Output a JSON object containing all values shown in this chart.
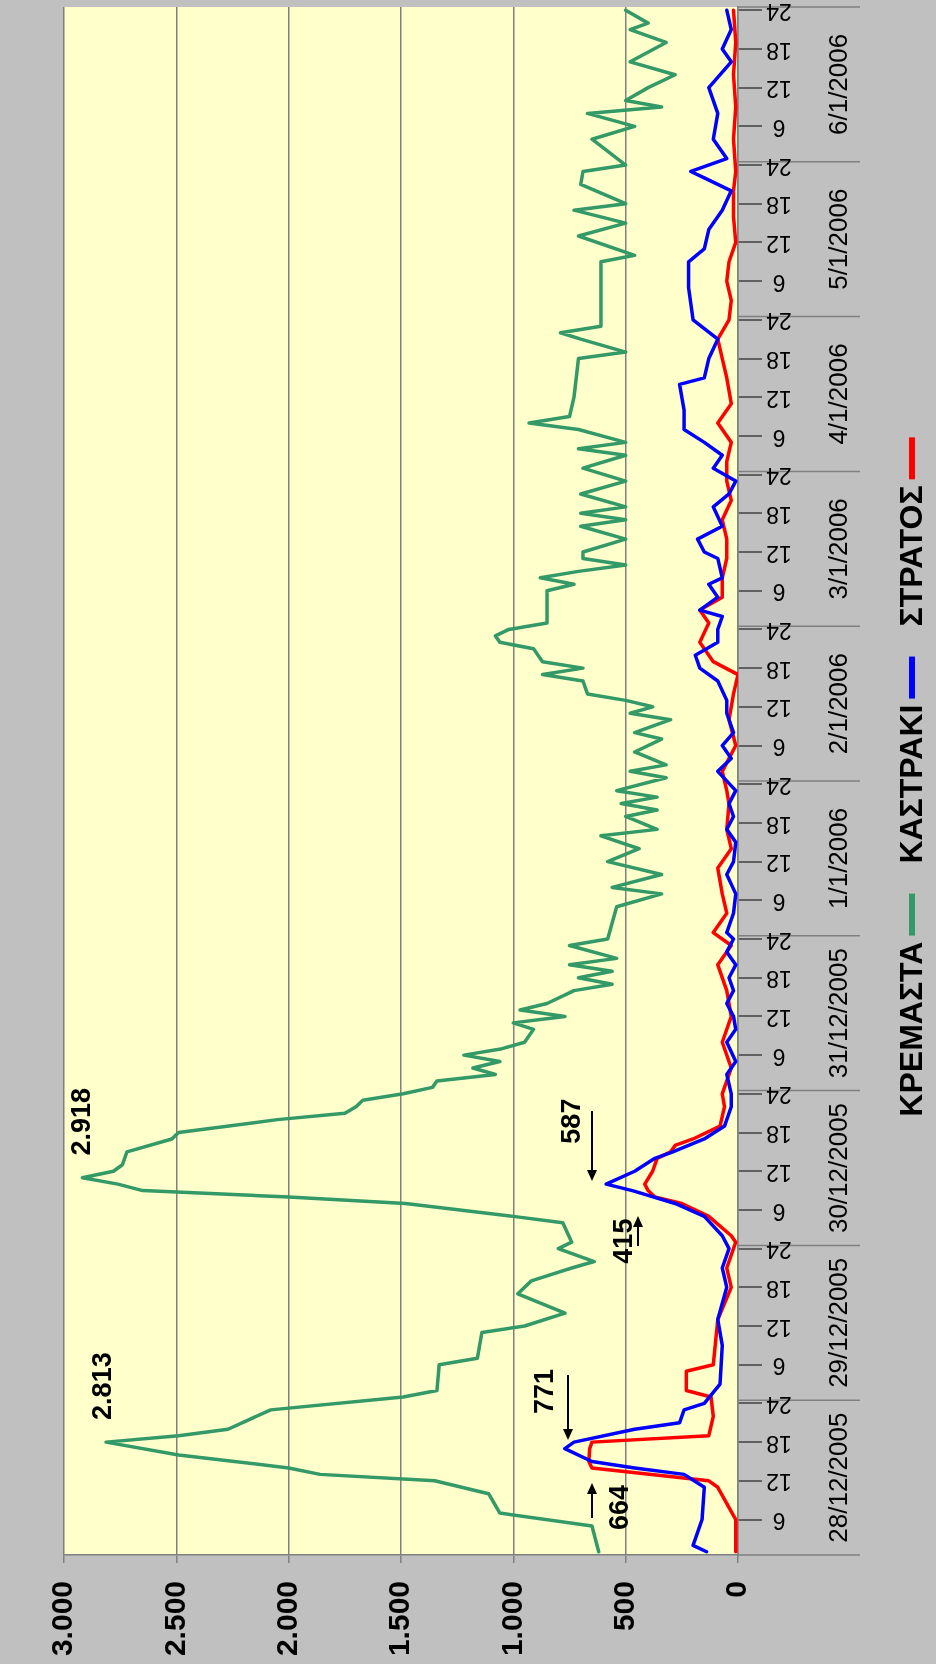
{
  "chart_data": {
    "type": "line",
    "orientation": "horizontal",
    "xlim": [
      3000,
      0
    ],
    "xticks": [
      {
        "value": 3000,
        "label": "3.000"
      },
      {
        "value": 2500,
        "label": "2.500"
      },
      {
        "value": 2000,
        "label": "2.000"
      },
      {
        "value": 1500,
        "label": "1.500"
      },
      {
        "value": 1000,
        "label": "1.000"
      },
      500,
      0
    ],
    "ylim": [
      "2005-12-28T00:30",
      "2006-01-07T00:30"
    ],
    "yticks": [
      {
        "value": "2005-12-28T06:00",
        "label": "6"
      },
      {
        "value": "2005-12-28T12:00",
        "label": "12"
      },
      {
        "value": "2005-12-28T18:00",
        "label": "18"
      },
      {
        "value": "2005-12-29T00:00",
        "label": "24"
      },
      {
        "value": "2005-12-29T06:00",
        "label": "6"
      },
      {
        "value": "2005-12-29T12:00",
        "label": "12"
      },
      {
        "value": "2005-12-29T18:00",
        "label": "18"
      },
      {
        "value": "2005-12-30T00:00",
        "label": "24"
      },
      {
        "value": "2005-12-30T06:00",
        "label": "6"
      },
      {
        "value": "2005-12-30T12:00",
        "label": "12"
      },
      {
        "value": "2005-12-30T18:00",
        "label": "18"
      },
      {
        "value": "2005-12-31T00:00",
        "label": "24"
      },
      {
        "value": "2005-12-31T06:00",
        "label": "6"
      },
      {
        "value": "2005-12-31T12:00",
        "label": "12"
      },
      {
        "value": "2005-12-31T18:00",
        "label": "18"
      },
      {
        "value": "2006-01-01T00:00",
        "label": "24"
      },
      {
        "value": "2006-01-01T06:00",
        "label": "6"
      },
      {
        "value": "2006-01-01T12:00",
        "label": "12"
      },
      {
        "value": "2006-01-01T18:00",
        "label": "18"
      },
      {
        "value": "2006-01-02T00:00",
        "label": "24"
      },
      {
        "value": "2006-01-02T06:00",
        "label": "6"
      },
      {
        "value": "2006-01-02T12:00",
        "label": "12"
      },
      {
        "value": "2006-01-02T18:00",
        "label": "18"
      },
      {
        "value": "2006-01-03T00:00",
        "label": "24"
      },
      {
        "value": "2006-01-03T06:00",
        "label": "6"
      },
      {
        "value": "2006-01-03T12:00",
        "label": "12"
      },
      {
        "value": "2006-01-03T18:00",
        "label": "18"
      },
      {
        "value": "2006-01-04T00:00",
        "label": "24"
      },
      {
        "value": "2006-01-04T06:00",
        "label": "6"
      },
      {
        "value": "2006-01-04T12:00",
        "label": "12"
      },
      {
        "value": "2006-01-04T18:00",
        "label": "18"
      },
      {
        "value": "2006-01-05T00:00",
        "label": "24"
      },
      {
        "value": "2006-01-05T06:00",
        "label": "6"
      },
      {
        "value": "2006-01-05T12:00",
        "label": "12"
      },
      {
        "value": "2006-01-05T18:00",
        "label": "18"
      },
      {
        "value": "2006-01-06T00:00",
        "label": "24"
      },
      {
        "value": "2006-01-06T06:00",
        "label": "6"
      },
      {
        "value": "2006-01-06T12:00",
        "label": "12"
      },
      {
        "value": "2006-01-06T18:00",
        "label": "18"
      },
      {
        "value": "2006-01-07T00:00",
        "label": "24"
      }
    ],
    "y2lim": [
      "2005-12-28T00:30",
      "2006-01-07T00:30"
    ],
    "y2ticks": [
      {
        "value": "2005-12-28T12:30",
        "label": "28/12/2005"
      },
      {
        "value": "2005-12-29T12:30",
        "label": "29/12/2005"
      },
      {
        "value": "2005-12-30T12:30",
        "label": "30/12/2005"
      },
      {
        "value": "2005-12-31T12:30",
        "label": "31/12/2005"
      },
      {
        "value": "2006-01-01T12:30",
        "label": "1/1/2006"
      },
      {
        "value": "2006-01-02T12:30",
        "label": "2/1/2006"
      },
      {
        "value": "2006-01-03T12:30",
        "label": "3/1/2006"
      },
      {
        "value": "2006-01-04T12:30",
        "label": "4/1/2006"
      },
      {
        "value": "2006-01-05T12:30",
        "label": "5/1/2006"
      },
      {
        "value": "2006-01-06T12:30",
        "label": "6/1/2006"
      }
    ],
    "grid": "x",
    "legend": "right",
    "series": [
      {
        "name": "ΚΡΕΜΑΣΤΑ",
        "color": "#339966",
        "x": [
          "2005-12-28T01:00",
          "2005-12-28T05:00",
          "2005-12-28T07:00",
          "2005-12-28T10:00",
          "2005-12-28T12:00",
          "2005-12-28T13:00",
          "2005-12-28T14:00",
          "2005-12-28T16:00",
          "2005-12-28T18:00",
          "2005-12-28T19:00",
          "2005-12-28T20:00",
          "2005-12-28T23:00",
          "2005-12-29T01:00",
          "2005-12-29T02:00",
          "2005-12-29T06:00",
          "2005-12-29T07:00",
          "2005-12-29T11:00",
          "2005-12-29T12:00",
          "2005-12-29T14:00",
          "2005-12-29T17:00",
          "2005-12-29T19:00",
          "2005-12-29T21:00",
          "2005-12-29T22:00",
          "2005-12-30T00:00",
          "2005-12-30T01:00",
          "2005-12-30T04:00",
          "2005-12-30T05:00",
          "2005-12-30T07:00",
          "2005-12-30T08:00",
          "2005-12-30T09:00",
          "2005-12-30T10:00",
          "2005-12-30T11:00",
          "2005-12-30T12:00",
          "2005-12-30T13:00",
          "2005-12-30T15:00",
          "2005-12-30T17:00",
          "2005-12-30T18:00",
          "2005-12-30T20:00",
          "2005-12-30T21:00",
          "2005-12-30T22:00",
          "2005-12-30T23:00",
          "2005-12-31T00:00",
          "2005-12-31T01:00",
          "2005-12-31T02:00",
          "2005-12-31T03:00",
          "2005-12-31T04:00",
          "2005-12-31T05:00",
          "2005-12-31T06:00",
          "2005-12-31T07:00",
          "2005-12-31T08:00",
          "2005-12-31T10:00",
          "2005-12-31T11:00",
          "2005-12-31T12:00",
          "2005-12-31T13:00",
          "2005-12-31T14:00",
          "2005-12-31T16:00",
          "2005-12-31T17:00",
          "2005-12-31T18:00",
          "2005-12-31T19:00",
          "2005-12-31T20:00",
          "2005-12-31T21:00",
          "2005-12-31T23:00",
          "2006-01-01T00:00",
          "2006-01-01T05:00",
          "2006-01-01T07:00",
          "2006-01-01T08:00",
          "2006-01-01T10:00",
          "2006-01-01T12:00",
          "2006-01-01T14:00",
          "2006-01-01T16:00",
          "2006-01-01T17:00",
          "2006-01-01T19:00",
          "2006-01-01T20:00",
          "2006-01-01T21:00",
          "2006-01-01T22:00",
          "2006-01-01T23:00",
          "2006-01-02T01:00",
          "2006-01-02T02:00",
          "2006-01-02T03:00",
          "2006-01-02T05:00",
          "2006-01-02T07:00",
          "2006-01-02T08:00",
          "2006-01-02T10:00",
          "2006-01-02T11:00",
          "2006-01-02T12:00",
          "2006-01-02T13:00",
          "2006-01-02T14:00",
          "2006-01-02T16:00",
          "2006-01-02T17:00",
          "2006-01-02T18:00",
          "2006-01-02T19:00",
          "2006-01-02T21:00",
          "2006-01-02T22:00",
          "2006-01-02T23:00",
          "2006-01-03T00:00",
          "2006-01-03T01:00",
          "2006-01-03T06:00",
          "2006-01-03T07:00",
          "2006-01-03T08:00",
          "2006-01-03T09:00",
          "2006-01-03T10:00",
          "2006-01-03T11:00",
          "2006-01-03T12:00",
          "2006-01-03T14:00",
          "2006-01-03T16:00",
          "2006-01-03T17:00",
          "2006-01-03T18:00",
          "2006-01-03T19:00",
          "2006-01-03T21:00",
          "2006-01-03T23:00",
          "2006-01-04T01:00",
          "2006-01-04T03:00",
          "2006-01-04T04:00",
          "2006-01-04T05:00",
          "2006-01-04T07:00",
          "2006-01-04T08:00",
          "2006-01-04T09:00",
          "2006-01-04T12:00",
          "2006-01-04T18:00",
          "2006-01-04T19:00",
          "2006-01-04T21:00",
          "2006-01-04T22:00",
          "2006-01-04T23:00",
          "2006-01-05T09:00",
          "2006-01-05T10:00",
          "2006-01-05T13:00",
          "2006-01-05T15:00",
          "2006-01-05T17:00",
          "2006-01-05T18:00",
          "2006-01-05T21:00",
          "2006-01-05T23:00",
          "2006-01-06T00:00",
          "2006-01-06T04:00",
          "2006-01-06T06:00",
          "2006-01-06T08:00",
          "2006-01-06T09:00",
          "2006-01-06T10:00",
          "2006-01-06T12:00",
          "2006-01-06T14:00",
          "2006-01-06T16:00",
          "2006-01-06T19:00",
          "2006-01-06T21:00",
          "2006-01-06T22:00",
          "2006-01-07T00:00"
        ],
        "values": [
          620,
          650,
          1060,
          1110,
          1350,
          1860,
          2000,
          2490,
          2813,
          2490,
          2270,
          2080,
          1490,
          1340,
          1330,
          1160,
          1140,
          950,
          770,
          980,
          920,
          740,
          640,
          800,
          740,
          780,
          1000,
          1480,
          2000,
          2650,
          2760,
          2918,
          2780,
          2740,
          2720,
          2520,
          2490,
          2050,
          1750,
          1700,
          1670,
          1490,
          1360,
          1340,
          1080,
          1180,
          1060,
          1220,
          1050,
          950,
          910,
          1000,
          770,
          970,
          850,
          730,
          560,
          710,
          560,
          750,
          540,
          750,
          580,
          540,
          340,
          560,
          340,
          580,
          440,
          610,
          360,
          500,
          360,
          520,
          360,
          540,
          320,
          480,
          320,
          460,
          340,
          460,
          300,
          480,
          380,
          500,
          670,
          690,
          870,
          690,
          870,
          910,
          1060,
          1080,
          1020,
          850,
          850,
          730,
          880,
          710,
          500,
          690,
          690,
          500,
          700,
          500,
          700,
          500,
          700,
          500,
          690,
          500,
          710,
          500,
          710,
          930,
          750,
          730,
          710,
          500,
          700,
          790,
          610,
          610,
          460,
          710,
          500,
          730,
          500,
          700,
          690,
          500,
          650,
          460,
          670,
          340,
          500,
          400,
          280,
          480,
          320,
          480,
          400,
          500
        ]
      },
      {
        "name": "ΚΑΣΤΡΑΚΙ",
        "color": "#0000ff",
        "x": [
          "2005-12-28T01:00",
          "2005-12-28T02:00",
          "2005-12-28T06:00",
          "2005-12-28T11:00",
          "2005-12-28T13:00",
          "2005-12-28T14:00",
          "2005-12-28T15:00",
          "2005-12-28T17:00",
          "2005-12-28T18:00",
          "2005-12-28T20:00",
          "2005-12-28T21:00",
          "2005-12-28T23:00",
          "2005-12-29T00:00",
          "2005-12-29T03:00",
          "2005-12-29T09:00",
          "2005-12-29T13:00",
          "2005-12-29T18:00",
          "2005-12-29T21:00",
          "2005-12-30T00:00",
          "2005-12-30T02:00",
          "2005-12-30T05:00",
          "2005-12-30T07:00",
          "2005-12-30T09:00",
          "2005-12-30T10:00",
          "2005-12-30T12:00",
          "2005-12-30T14:00",
          "2005-12-30T15:00",
          "2005-12-30T17:00",
          "2005-12-30T19:00",
          "2005-12-30T22:00",
          "2005-12-31T00:00",
          "2005-12-31T03:00",
          "2005-12-31T05:00",
          "2005-12-31T08:00",
          "2005-12-31T10:00",
          "2005-12-31T12:00",
          "2005-12-31T14:00",
          "2005-12-31T16:00",
          "2005-12-31T18:00",
          "2005-12-31T20:00",
          "2005-12-31T22:00",
          "2006-01-01T00:00",
          "2006-01-01T01:00",
          "2006-01-01T04:00",
          "2006-01-01T07:00",
          "2006-01-01T10:00",
          "2006-01-01T12:00",
          "2006-01-01T15:00",
          "2006-01-01T17:00",
          "2006-01-01T19:00",
          "2006-01-01T21:00",
          "2006-01-01T23:00",
          "2006-01-02T02:00",
          "2006-01-02T04:00",
          "2006-01-02T06:00",
          "2006-01-02T08:00",
          "2006-01-02T11:00",
          "2006-01-02T13:00",
          "2006-01-02T16:00",
          "2006-01-02T18:00",
          "2006-01-02T20:00",
          "2006-01-02T22:00",
          "2006-01-03T00:00",
          "2006-01-03T02:00",
          "2006-01-03T03:00",
          "2006-01-03T05:00",
          "2006-01-03T07:00",
          "2006-01-03T08:00",
          "2006-01-03T11:00",
          "2006-01-03T12:00",
          "2006-01-03T14:00",
          "2006-01-03T16:00",
          "2006-01-03T19:00",
          "2006-01-03T21:00",
          "2006-01-03T23:00",
          "2006-01-04T01:00",
          "2006-01-04T03:00",
          "2006-01-04T05:00",
          "2006-01-04T07:00",
          "2006-01-04T10:00",
          "2006-01-04T14:00",
          "2006-01-04T15:00",
          "2006-01-04T18:00",
          "2006-01-04T21:00",
          "2006-01-05T00:00",
          "2006-01-05T05:00",
          "2006-01-05T09:00",
          "2006-01-05T11:00",
          "2006-01-05T14:00",
          "2006-01-05T17:00",
          "2006-01-05T20:00",
          "2006-01-05T22:00",
          "2006-01-05T23:00",
          "2006-01-06T01:00",
          "2006-01-06T04:00",
          "2006-01-06T08:00",
          "2006-01-06T12:00",
          "2006-01-06T16:00",
          "2006-01-06T18:00",
          "2006-01-06T21:00",
          "2006-01-07T00:00"
        ],
        "values": [
          140,
          200,
          160,
          150,
          240,
          460,
          650,
          771,
          730,
          460,
          260,
          240,
          150,
          80,
          70,
          90,
          50,
          70,
          40,
          70,
          150,
          280,
          470,
          587,
          460,
          370,
          290,
          150,
          60,
          30,
          30,
          50,
          10,
          50,
          10,
          20,
          50,
          20,
          40,
          10,
          50,
          20,
          50,
          20,
          10,
          50,
          20,
          10,
          50,
          20,
          40,
          10,
          90,
          30,
          70,
          20,
          50,
          50,
          90,
          170,
          190,
          90,
          90,
          70,
          170,
          90,
          130,
          70,
          90,
          150,
          180,
          70,
          110,
          40,
          10,
          110,
          70,
          150,
          240,
          240,
          260,
          150,
          130,
          90,
          200,
          220,
          220,
          150,
          130,
          70,
          30,
          150,
          210,
          50,
          110,
          90,
          130,
          30,
          70,
          30,
          50
        ]
      },
      {
        "name": "ΣΤΡΑΤΟΣ",
        "color": "#ff0000",
        "x": [
          "2005-12-28T01:00",
          "2005-12-28T06:00",
          "2005-12-28T11:00",
          "2005-12-28T12:00",
          "2005-12-28T14:00",
          "2005-12-28T15:00",
          "2005-12-28T17:00",
          "2005-12-28T18:00",
          "2005-12-28T19:00",
          "2005-12-28T22:00",
          "2005-12-29T01:00",
          "2005-12-29T02:00",
          "2005-12-29T05:00",
          "2005-12-29T06:00",
          "2005-12-29T13:00",
          "2005-12-29T18:00",
          "2005-12-29T21:00",
          "2005-12-30T01:00",
          "2005-12-30T02:00",
          "2005-12-30T05:00",
          "2005-12-30T07:00",
          "2005-12-30T08:00",
          "2005-12-30T09:00",
          "2005-12-30T10:00",
          "2005-12-30T12:00",
          "2005-12-30T14:00",
          "2005-12-30T15:00",
          "2005-12-30T16:00",
          "2005-12-30T17:00",
          "2005-12-30T19:00",
          "2005-12-30T22:00",
          "2005-12-31T00:00",
          "2005-12-31T04:00",
          "2005-12-31T08:00",
          "2005-12-31T12:00",
          "2005-12-31T16:00",
          "2005-12-31T20:00",
          "2005-12-31T23:00",
          "2006-01-01T01:00",
          "2006-01-01T04:00",
          "2006-01-01T07:00",
          "2006-01-01T11:00",
          "2006-01-01T14:00",
          "2006-01-01T17:00",
          "2006-01-01T21:00",
          "2006-01-01T23:00",
          "2006-01-02T02:00",
          "2006-01-02T06:00",
          "2006-01-02T10:00",
          "2006-01-02T14:00",
          "2006-01-02T17:00",
          "2006-01-02T19:00",
          "2006-01-02T22:00",
          "2006-01-03T01:00",
          "2006-01-03T03:00",
          "2006-01-03T05:00",
          "2006-01-03T08:00",
          "2006-01-03T11:00",
          "2006-01-03T14:00",
          "2006-01-03T17:00",
          "2006-01-03T20:00",
          "2006-01-03T23:00",
          "2006-01-04T02:00",
          "2006-01-04T05:00",
          "2006-01-04T08:00",
          "2006-01-04T11:00",
          "2006-01-04T15:00",
          "2006-01-04T18:00",
          "2006-01-04T21:00",
          "2006-01-05T00:00",
          "2006-01-05T03:00",
          "2006-01-05T06:00",
          "2006-01-05T09:00",
          "2006-01-05T12:00",
          "2006-01-05T16:00",
          "2006-01-05T20:00",
          "2006-01-05T23:00",
          "2006-01-06T04:00",
          "2006-01-06T09:00",
          "2006-01-06T14:00",
          "2006-01-06T19:00",
          "2006-01-07T00:00"
        ],
        "values": [
          10,
          10,
          90,
          130,
          650,
          664,
          660,
          650,
          130,
          110,
          120,
          230,
          230,
          110,
          90,
          30,
          50,
          10,
          30,
          130,
          250,
          370,
          400,
          415,
          380,
          360,
          300,
          280,
          200,
          80,
          60,
          70,
          30,
          70,
          30,
          50,
          90,
          30,
          110,
          50,
          70,
          90,
          30,
          50,
          40,
          50,
          70,
          10,
          40,
          20,
          0,
          110,
          170,
          130,
          170,
          70,
          70,
          50,
          50,
          70,
          30,
          50,
          50,
          30,
          90,
          30,
          50,
          70,
          90,
          40,
          30,
          50,
          40,
          10,
          20,
          20,
          10,
          20,
          10,
          20,
          10,
          20
        ]
      }
    ],
    "annotations": [
      {
        "text": "2.813",
        "x": 2813,
        "y": "2005-12-28T18:00"
      },
      {
        "text": "2.918",
        "x": 2918,
        "y": "2005-12-30T11:00"
      },
      {
        "text": "771",
        "x": 771,
        "y": "2005-12-28T17:00"
      },
      {
        "text": "664",
        "x": 664,
        "y": "2005-12-28T15:00"
      },
      {
        "text": "587",
        "x": 587,
        "y": "2005-12-30T10:00"
      },
      {
        "text": "415",
        "x": 415,
        "y": "2005-12-30T10:00"
      }
    ]
  }
}
